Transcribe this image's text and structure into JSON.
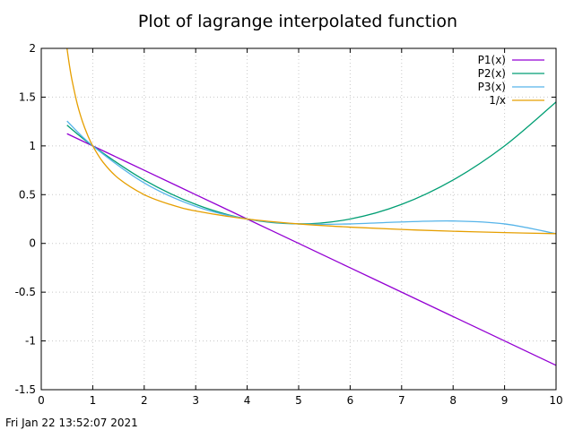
{
  "chart_data": {
    "type": "line",
    "title": "Plot of lagrange interpolated function",
    "xlim": [
      0,
      10
    ],
    "ylim": [
      -1.5,
      2
    ],
    "x_ticks": [
      0,
      1,
      2,
      3,
      4,
      5,
      6,
      7,
      8,
      9,
      10
    ],
    "y_ticks": [
      -1.5,
      -1,
      -0.5,
      0,
      0.5,
      1,
      1.5,
      2
    ],
    "x_tick_labels": [
      "0",
      "1",
      "2",
      "3",
      "4",
      "5",
      "6",
      "7",
      "8",
      "9",
      "10"
    ],
    "y_tick_labels": [
      "-1.5",
      "-1",
      "-0.5",
      "0",
      "0.5",
      "1",
      "1.5",
      "2"
    ],
    "grid": true,
    "legend_position": "top-right",
    "series": [
      {
        "name": "P1(x)",
        "color": "#9400d3",
        "x": [
          0.5,
          1,
          2,
          3,
          4,
          5,
          6,
          7,
          8,
          9,
          10
        ],
        "y": [
          1.125,
          1.0,
          0.75,
          0.5,
          0.25,
          0.0,
          -0.25,
          -0.5,
          -0.75,
          -1.0,
          -1.25
        ]
      },
      {
        "name": "P2(x)",
        "color": "#009e73",
        "x": [
          0.5,
          1,
          2,
          3,
          4,
          5,
          6,
          7,
          8,
          9,
          10
        ],
        "y": [
          1.2125,
          1.0,
          0.65,
          0.4,
          0.25,
          0.2,
          0.25,
          0.4,
          0.65,
          1.0,
          1.45
        ]
      },
      {
        "name": "P3(x)",
        "color": "#56b4e9",
        "x": [
          0.5,
          1,
          2,
          3,
          4,
          5,
          6,
          7,
          8,
          9,
          10
        ],
        "y": [
          1.255,
          1.0,
          0.62,
          0.38,
          0.25,
          0.2,
          0.2,
          0.22,
          0.23,
          0.2,
          0.1
        ]
      },
      {
        "name": "1/x",
        "color": "#e69f00",
        "x": [
          0.5,
          0.55,
          0.6,
          0.7,
          0.8,
          0.9,
          1,
          1.2,
          1.5,
          2,
          2.5,
          3,
          4,
          5,
          6,
          7,
          8,
          9,
          10
        ],
        "y": [
          2.0,
          1.818,
          1.667,
          1.429,
          1.25,
          1.111,
          1.0,
          0.833,
          0.667,
          0.5,
          0.4,
          0.333,
          0.25,
          0.2,
          0.167,
          0.143,
          0.125,
          0.111,
          0.1
        ]
      }
    ]
  },
  "footer": {
    "timestamp": "Fri Jan 22 13:52:07 2021"
  }
}
